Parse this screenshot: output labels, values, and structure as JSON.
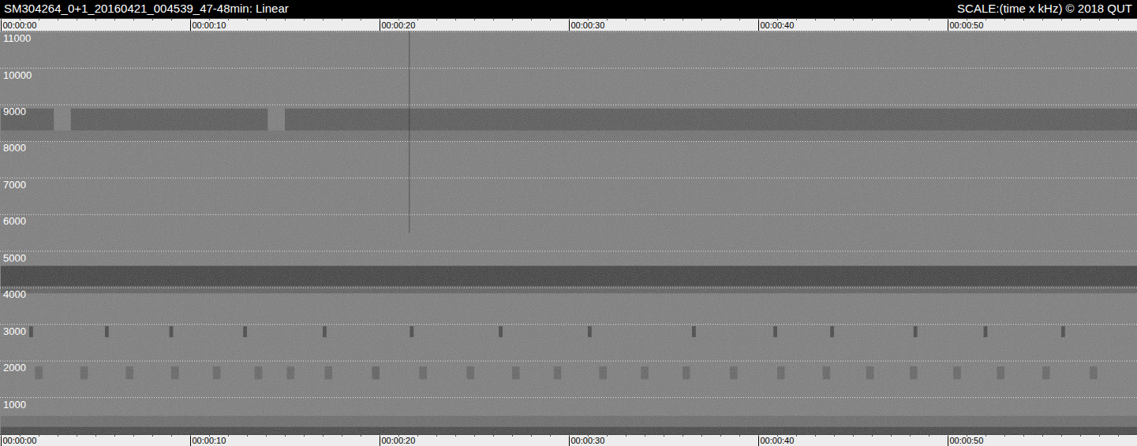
{
  "chart_data": {
    "type": "spectrogram",
    "title": "SM304264_0+1_20160421_004539_47-48min:  Linear",
    "subtitle": "SCALE:(time x kHz)  © 2018 QUT",
    "xlim": [
      0,
      60
    ],
    "xticks": [
      {
        "value": 0,
        "label": "00:00:00"
      },
      {
        "value": 10,
        "label": "00:00:10"
      },
      {
        "value": 20,
        "label": "00:00:20"
      },
      {
        "value": 30,
        "label": "00:00:30"
      },
      {
        "value": 40,
        "label": "00:00:40"
      },
      {
        "value": 50,
        "label": "00:00:50"
      }
    ],
    "ylim": [
      0,
      11025
    ],
    "yticks": [
      1000,
      2000,
      3000,
      4000,
      5000,
      6000,
      7000,
      8000,
      9000,
      10000,
      11000
    ],
    "grid": true,
    "color": "#7b7b7b",
    "events": [
      {
        "start": 0,
        "end": 60,
        "low": 0,
        "high": 200,
        "level": 45
      },
      {
        "start": 0,
        "end": 60,
        "low": 200,
        "high": 500,
        "level": 15
      },
      {
        "start": 0,
        "end": 60,
        "low": 4050,
        "high": 4600,
        "level": 50
      },
      {
        "start": 0,
        "end": 60,
        "low": 3850,
        "high": 4050,
        "level": 25
      },
      {
        "start": 0,
        "end": 60,
        "low": 8000,
        "high": 8300,
        "level": 10
      },
      {
        "start": 0,
        "end": 2.8,
        "low": 8300,
        "high": 8900,
        "level": 30
      },
      {
        "start": 3.7,
        "end": 14.1,
        "low": 8300,
        "high": 8900,
        "level": 30
      },
      {
        "start": 15.0,
        "end": 60,
        "low": 8300,
        "high": 8900,
        "level": 30
      },
      {
        "start": 21.55,
        "end": 21.6,
        "low": 5500,
        "high": 11025,
        "level": 40
      },
      {
        "start": 1.5,
        "end": 1.7,
        "low": 2650,
        "high": 2950,
        "level": 45
      },
      {
        "start": 5.5,
        "end": 5.7,
        "low": 2650,
        "high": 2950,
        "level": 45
      },
      {
        "start": 8.9,
        "end": 9.1,
        "low": 2650,
        "high": 2950,
        "level": 45
      },
      {
        "start": 12.8,
        "end": 13.0,
        "low": 2650,
        "high": 2950,
        "level": 45
      },
      {
        "start": 17.0,
        "end": 17.2,
        "low": 2650,
        "high": 2950,
        "level": 45
      },
      {
        "start": 21.6,
        "end": 21.8,
        "low": 2650,
        "high": 2950,
        "level": 45
      },
      {
        "start": 26.3,
        "end": 26.5,
        "low": 2650,
        "high": 2950,
        "level": 45
      },
      {
        "start": 31.0,
        "end": 31.2,
        "low": 2650,
        "high": 2950,
        "level": 45
      },
      {
        "start": 36.5,
        "end": 36.7,
        "low": 2650,
        "high": 2950,
        "level": 45
      },
      {
        "start": 40.8,
        "end": 41.0,
        "low": 2650,
        "high": 2950,
        "level": 45
      },
      {
        "start": 43.8,
        "end": 44.0,
        "low": 2650,
        "high": 2950,
        "level": 45
      },
      {
        "start": 48.2,
        "end": 48.4,
        "low": 2650,
        "high": 2950,
        "level": 45
      },
      {
        "start": 51.9,
        "end": 52.1,
        "low": 2650,
        "high": 2950,
        "level": 45
      },
      {
        "start": 56.0,
        "end": 56.2,
        "low": 2650,
        "high": 2950,
        "level": 45
      },
      {
        "start": 1.8,
        "end": 2.2,
        "low": 1500,
        "high": 1850,
        "level": 20
      },
      {
        "start": 4.2,
        "end": 4.6,
        "low": 1500,
        "high": 1850,
        "level": 20
      },
      {
        "start": 6.6,
        "end": 7.0,
        "low": 1500,
        "high": 1850,
        "level": 20
      },
      {
        "start": 9.0,
        "end": 9.4,
        "low": 1500,
        "high": 1850,
        "level": 20
      },
      {
        "start": 11.2,
        "end": 11.6,
        "low": 1500,
        "high": 1850,
        "level": 20
      },
      {
        "start": 13.4,
        "end": 13.8,
        "low": 1500,
        "high": 1850,
        "level": 20
      },
      {
        "start": 15.1,
        "end": 15.5,
        "low": 1500,
        "high": 1850,
        "level": 20
      },
      {
        "start": 17.1,
        "end": 17.5,
        "low": 1500,
        "high": 1850,
        "level": 20
      },
      {
        "start": 19.6,
        "end": 20.0,
        "low": 1500,
        "high": 1850,
        "level": 25
      },
      {
        "start": 22.1,
        "end": 22.5,
        "low": 1500,
        "high": 1850,
        "level": 20
      },
      {
        "start": 24.6,
        "end": 25.0,
        "low": 1500,
        "high": 1850,
        "level": 20
      },
      {
        "start": 27.0,
        "end": 27.4,
        "low": 1500,
        "high": 1850,
        "level": 20
      },
      {
        "start": 29.2,
        "end": 29.6,
        "low": 1500,
        "high": 1850,
        "level": 20
      },
      {
        "start": 31.6,
        "end": 32.0,
        "low": 1500,
        "high": 1850,
        "level": 20
      },
      {
        "start": 33.8,
        "end": 34.2,
        "low": 1500,
        "high": 1850,
        "level": 20
      },
      {
        "start": 36.0,
        "end": 36.4,
        "low": 1500,
        "high": 1850,
        "level": 20
      },
      {
        "start": 38.5,
        "end": 38.9,
        "low": 1500,
        "high": 1850,
        "level": 20
      },
      {
        "start": 41.0,
        "end": 41.4,
        "low": 1500,
        "high": 1850,
        "level": 20
      },
      {
        "start": 43.4,
        "end": 43.8,
        "low": 1500,
        "high": 1850,
        "level": 20
      },
      {
        "start": 45.7,
        "end": 46.1,
        "low": 1500,
        "high": 1850,
        "level": 20
      },
      {
        "start": 48.0,
        "end": 48.4,
        "low": 1500,
        "high": 1850,
        "level": 20
      },
      {
        "start": 50.3,
        "end": 50.7,
        "low": 1500,
        "high": 1850,
        "level": 20
      },
      {
        "start": 52.6,
        "end": 53.0,
        "low": 1500,
        "high": 1850,
        "level": 20
      },
      {
        "start": 55.0,
        "end": 55.4,
        "low": 1500,
        "high": 1850,
        "level": 20
      },
      {
        "start": 57.5,
        "end": 57.9,
        "low": 1500,
        "high": 1850,
        "level": 20
      }
    ]
  }
}
